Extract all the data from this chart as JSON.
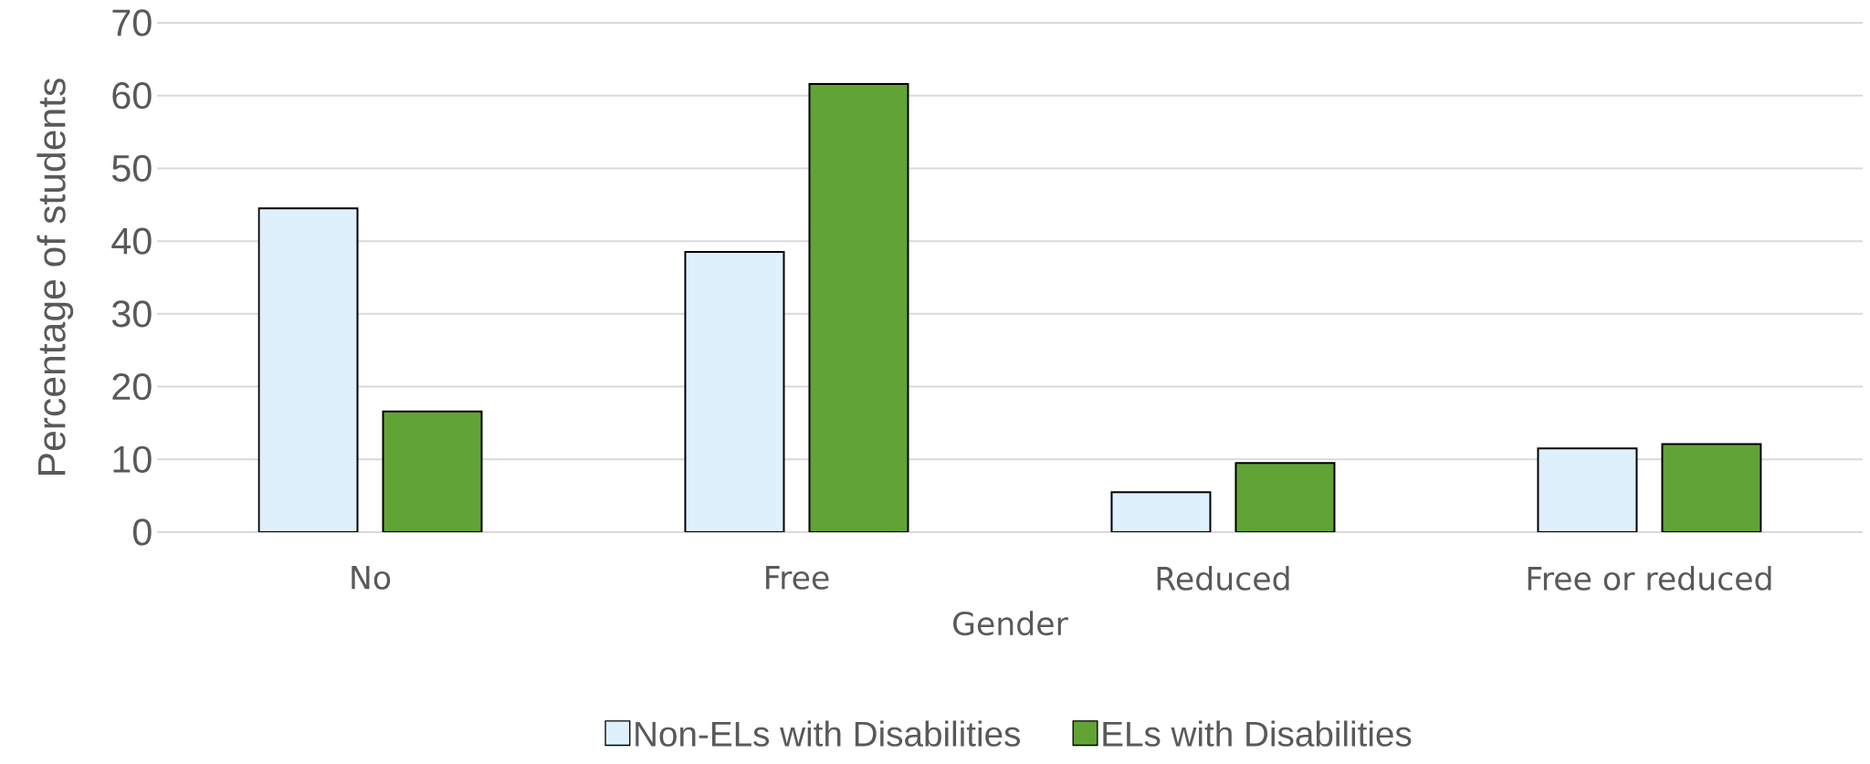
{
  "chart_data": {
    "type": "bar",
    "xlabel": "Gender",
    "ylabel": "Percentage of  students",
    "categories": [
      "No",
      "Free",
      "Reduced",
      "Free or reduced"
    ],
    "series": [
      {
        "name": "Non-ELs with Disabilities",
        "color": "#ddf0fb",
        "values": [
          44.5,
          38.5,
          5.5,
          11.5
        ]
      },
      {
        "name": "ELs with Disabilities",
        "color": "#62a336",
        "values": [
          16.6,
          61.6,
          9.5,
          12.1
        ]
      }
    ],
    "ylim": [
      0,
      70
    ],
    "yticks": [
      0,
      10,
      20,
      30,
      40,
      50,
      60,
      70
    ],
    "grid": "y",
    "legend": "bottom"
  }
}
